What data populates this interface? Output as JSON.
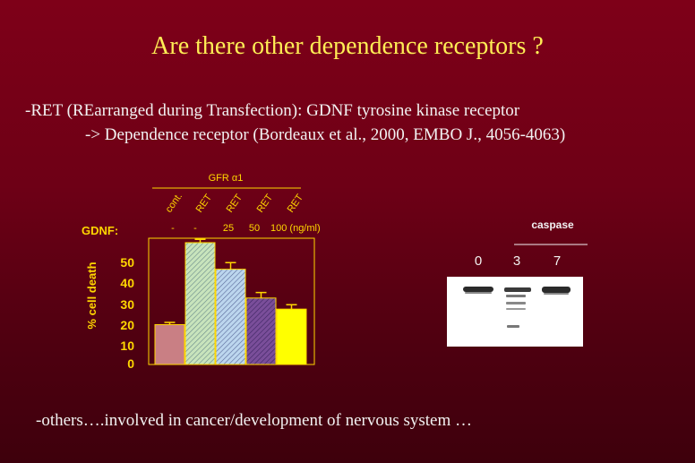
{
  "slide": {
    "title": "Are there other dependence receptors ?",
    "line1": "-RET (REarranged during Transfection): GDNF tyrosine kinase receptor",
    "line2": "-> Dependence receptor (Bordeaux et al., 2000, EMBO J., 4056-4063)",
    "footer": "-others….involved in cancer/development of nervous system …"
  },
  "colors": {
    "title": "#ffee55",
    "body_text": "#f2f2f2",
    "chart_axis": "#ffd700",
    "background_top": "#7e0018",
    "background_bottom": "#3e000c"
  },
  "chart_data": {
    "type": "bar",
    "group_label": "GFR α1",
    "categories": [
      "cont.",
      "RET",
      "RET",
      "RET",
      "RET"
    ],
    "treatment_label": "GDNF:",
    "treatments": [
      "-",
      "-",
      "25",
      "50",
      "100 (ng/ml)"
    ],
    "ylabel": "% cell death",
    "ylim": [
      0,
      57
    ],
    "yticks": [
      0,
      10,
      20,
      30,
      40,
      50
    ],
    "values": [
      18,
      55,
      43,
      30,
      25
    ],
    "errors": [
      1,
      1.5,
      3,
      2.5,
      2
    ],
    "bar_colors": [
      "#c97f84",
      "#c8e4bc",
      "#bcd6ee",
      "#7a4e9a",
      "#ffff00"
    ],
    "bar_hatched": [
      false,
      true,
      true,
      true,
      false
    ],
    "grid": false
  },
  "blot": {
    "label": "caspase",
    "lanes": [
      "0",
      "3",
      "7"
    ]
  }
}
